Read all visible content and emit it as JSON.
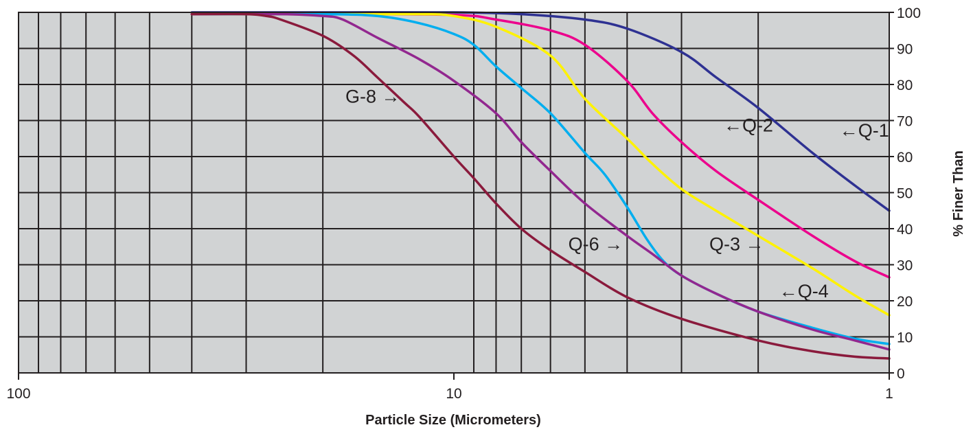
{
  "chart_data": {
    "type": "line",
    "title": "",
    "xlabel": "Particle Size (Micrometers)",
    "ylabel": "% Finer Than",
    "x_scale": "log",
    "x_reversed": true,
    "xlim": [
      100,
      1
    ],
    "ylim": [
      0,
      100
    ],
    "x_ticks": [
      {
        "value": 100,
        "label": "100"
      },
      {
        "value": 10,
        "label": "10"
      },
      {
        "value": 1,
        "label": "1"
      }
    ],
    "x_gridlines": [
      90,
      80,
      70,
      60,
      50,
      40,
      30,
      20,
      9,
      8,
      7,
      6,
      5,
      4,
      3,
      2
    ],
    "y_ticks": [
      {
        "value": 0,
        "label": "0"
      },
      {
        "value": 10,
        "label": "10"
      },
      {
        "value": 20,
        "label": "20"
      },
      {
        "value": 30,
        "label": "30"
      },
      {
        "value": 40,
        "label": "40"
      },
      {
        "value": 50,
        "label": "50"
      },
      {
        "value": 60,
        "label": "60"
      },
      {
        "value": 70,
        "label": "70"
      },
      {
        "value": 80,
        "label": "80"
      },
      {
        "value": 90,
        "label": "90"
      },
      {
        "value": 100,
        "label": "100"
      }
    ],
    "grid": true,
    "background": "#d1d3d4",
    "series": [
      {
        "name": "Q-1",
        "color": "#2e3192",
        "label": "←Q-1",
        "label_at": {
          "x": 1.3,
          "y": 65.5
        },
        "label_anchor": "start",
        "points": [
          [
            40,
            100
          ],
          [
            20,
            100
          ],
          [
            10,
            100
          ],
          [
            7,
            99.5
          ],
          [
            5,
            98
          ],
          [
            4,
            95.5
          ],
          [
            3,
            89
          ],
          [
            2.5,
            82
          ],
          [
            2,
            73.5
          ],
          [
            1.5,
            61
          ],
          [
            1.2,
            52
          ],
          [
            1,
            45
          ]
        ]
      },
      {
        "name": "Q-2",
        "color": "#ec008c",
        "label": "←Q-2",
        "label_at": {
          "x": 2.4,
          "y": 67
        },
        "label_anchor": "start",
        "points": [
          [
            40,
            99.5
          ],
          [
            20,
            99.5
          ],
          [
            10,
            99.3
          ],
          [
            8,
            98
          ],
          [
            6,
            95
          ],
          [
            5,
            91
          ],
          [
            4,
            81
          ],
          [
            3.5,
            72
          ],
          [
            3,
            64
          ],
          [
            2.5,
            56
          ],
          [
            2,
            48
          ],
          [
            1.5,
            38
          ],
          [
            1.2,
            31
          ],
          [
            1,
            26.5
          ]
        ]
      },
      {
        "name": "Q-3",
        "color": "#fff200",
        "label": "Q-3 →",
        "label_at": {
          "x": 1.94,
          "y": 34
        },
        "label_anchor": "end",
        "points": [
          [
            40,
            99.5
          ],
          [
            20,
            99.5
          ],
          [
            12,
            99.5
          ],
          [
            10,
            99
          ],
          [
            8,
            96
          ],
          [
            6,
            88
          ],
          [
            5,
            76
          ],
          [
            4,
            65
          ],
          [
            3.5,
            58
          ],
          [
            3,
            51
          ],
          [
            2.5,
            45
          ],
          [
            2,
            38
          ],
          [
            1.5,
            29
          ],
          [
            1.2,
            21.5
          ],
          [
            1,
            16
          ]
        ]
      },
      {
        "name": "Q-4",
        "color": "#00aeef",
        "label": "←Q-4",
        "label_at": {
          "x": 1.79,
          "y": 21
        },
        "label_anchor": "start",
        "points": [
          [
            40,
            99.5
          ],
          [
            20,
            99.5
          ],
          [
            15,
            99
          ],
          [
            12,
            97
          ],
          [
            10,
            94
          ],
          [
            9,
            91
          ],
          [
            8,
            85
          ],
          [
            7,
            79
          ],
          [
            6,
            72
          ],
          [
            5,
            61
          ],
          [
            4.5,
            55
          ],
          [
            4,
            46
          ],
          [
            3.6,
            37
          ],
          [
            3.3,
            31
          ],
          [
            3,
            27
          ],
          [
            2.5,
            22
          ],
          [
            2,
            17
          ],
          [
            1.5,
            12.5
          ],
          [
            1.2,
            9.5
          ],
          [
            1,
            8
          ]
        ]
      },
      {
        "name": "Q-6",
        "color": "#92278f",
        "label": "Q-6 →",
        "label_at": {
          "x": 4.09,
          "y": 34
        },
        "label_anchor": "end",
        "points": [
          [
            40,
            99.5
          ],
          [
            25,
            99.5
          ],
          [
            20,
            99
          ],
          [
            18,
            98
          ],
          [
            15,
            93
          ],
          [
            12,
            87
          ],
          [
            10,
            81
          ],
          [
            8,
            72
          ],
          [
            7,
            64
          ],
          [
            6,
            56
          ],
          [
            5,
            47
          ],
          [
            4,
            38
          ],
          [
            3.5,
            33
          ],
          [
            3,
            27
          ],
          [
            2.5,
            22
          ],
          [
            2,
            17
          ],
          [
            1.5,
            12
          ],
          [
            1.2,
            9
          ],
          [
            1,
            6.5
          ]
        ]
      },
      {
        "name": "G-8",
        "color": "#8a1a3c",
        "label": "G-8 →",
        "label_at": {
          "x": 13.3,
          "y": 75
        },
        "label_anchor": "end",
        "points": [
          [
            40,
            99.5
          ],
          [
            30,
            99.5
          ],
          [
            27,
            99
          ],
          [
            25,
            98
          ],
          [
            20,
            93.5
          ],
          [
            17,
            88
          ],
          [
            15,
            82
          ],
          [
            13,
            75
          ],
          [
            12,
            71
          ],
          [
            10,
            60
          ],
          [
            9,
            54
          ],
          [
            8,
            47
          ],
          [
            7,
            40
          ],
          [
            6,
            34
          ],
          [
            5,
            28
          ],
          [
            4,
            21
          ],
          [
            3,
            15
          ],
          [
            2,
            9
          ],
          [
            1.5,
            6
          ],
          [
            1.2,
            4.5
          ],
          [
            1,
            4
          ]
        ]
      }
    ]
  }
}
